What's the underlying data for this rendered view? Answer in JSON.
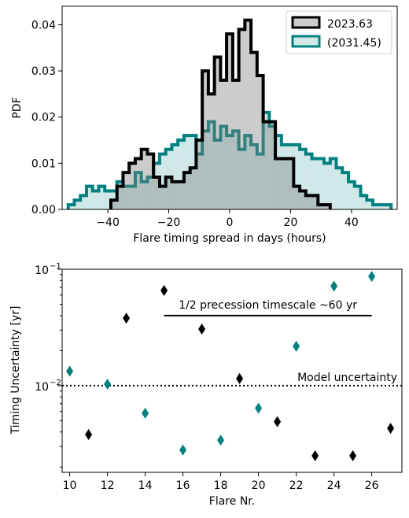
{
  "chart_data": [
    {
      "type": "histogram",
      "xlabel": "Flare timing spread in days (hours)",
      "ylabel": "PDF",
      "xlim": [
        -55,
        55
      ],
      "ylim": [
        0,
        0.044
      ],
      "xticks": [
        "−40",
        "−20",
        "0",
        "20",
        "40"
      ],
      "xtick_values": [
        -40,
        -20,
        0,
        20,
        40
      ],
      "yticks": [
        "0.00",
        "0.01",
        "0.02",
        "0.03",
        "0.04"
      ],
      "ytick_values": [
        0,
        0.01,
        0.02,
        0.03,
        0.04
      ],
      "legend_position": "top-right",
      "series": [
        {
          "name": "(2031.45)",
          "color": "#008080",
          "fill": "rgba(0,128,128,0.18)",
          "edges": [
            -53,
            -51,
            -49,
            -47,
            -45,
            -43,
            -41,
            -39,
            -37,
            -35,
            -33,
            -31,
            -29,
            -27,
            -25,
            -23,
            -21,
            -19,
            -17,
            -15,
            -13,
            -11,
            -9,
            -7,
            -5,
            -3,
            -1,
            1,
            3,
            5,
            7,
            9,
            11,
            13,
            15,
            17,
            19,
            21,
            23,
            25,
            27,
            29,
            31,
            33,
            35,
            37,
            39,
            41,
            43,
            45,
            47,
            49,
            51,
            53
          ],
          "values": [
            0.001,
            0.002,
            0.003,
            0.005,
            0.004,
            0.005,
            0.004,
            0.004,
            0.006,
            0.005,
            0.005,
            0.008,
            0.006,
            0.007,
            0.01,
            0.012,
            0.013,
            0.014,
            0.015,
            0.016,
            0.016,
            0.012,
            0.017,
            0.019,
            0.015,
            0.018,
            0.016,
            0.017,
            0.013,
            0.016,
            0.014,
            0.012,
            0.021,
            0.018,
            0.016,
            0.014,
            0.014,
            0.014,
            0.013,
            0.012,
            0.011,
            0.011,
            0.01,
            0.011,
            0.009,
            0.008,
            0.006,
            0.005,
            0.003,
            0.002,
            0.001,
            0.001,
            0.001
          ]
        },
        {
          "name": "2023.63",
          "color": "#000000",
          "fill": "rgba(128,128,128,0.40)",
          "edges": [
            -39,
            -37,
            -35,
            -33,
            -31,
            -29,
            -27,
            -25,
            -23,
            -21,
            -19,
            -17,
            -15,
            -13,
            -11,
            -9,
            -7,
            -5,
            -3,
            -1,
            1,
            3,
            5,
            7,
            9,
            11,
            13,
            15,
            17,
            19,
            21,
            23,
            25,
            27,
            29,
            31,
            33
          ],
          "values": [
            0.002,
            0.005,
            0.008,
            0.01,
            0.011,
            0.013,
            0.012,
            0.007,
            0.005,
            0.007,
            0.006,
            0.006,
            0.008,
            0.009,
            0.015,
            0.03,
            0.025,
            0.033,
            0.028,
            0.038,
            0.028,
            0.039,
            0.041,
            0.034,
            0.029,
            0.019,
            0.019,
            0.011,
            0.011,
            0.011,
            0.005,
            0.004,
            0.003,
            0.003,
            0.001,
            0.001
          ]
        }
      ]
    },
    {
      "type": "scatter",
      "xlabel": "Flare Nr.",
      "ylabel": "Timing Uncertainty [yr]",
      "xlim": [
        9.6,
        27.6
      ],
      "ylim": [
        0.0018,
        0.1
      ],
      "yscale": "log",
      "xticks": [
        "10",
        "12",
        "14",
        "16",
        "18",
        "20",
        "22",
        "24",
        "26"
      ],
      "xtick_values": [
        10,
        12,
        14,
        16,
        18,
        20,
        22,
        24,
        26
      ],
      "yticks": [
        "10",
        "10"
      ],
      "ytick_exponents": [
        "−2",
        "−1"
      ],
      "ytick_values": [
        0.01,
        0.1
      ],
      "series": [
        {
          "color": "#008080",
          "x": [
            10,
            12,
            14,
            16,
            18,
            20,
            22,
            24,
            26
          ],
          "y": [
            0.0133,
            0.0103,
            0.0058,
            0.0028,
            0.0034,
            0.0064,
            0.0218,
            0.0715,
            0.0868
          ]
        },
        {
          "color": "#000000",
          "x": [
            11,
            13,
            15,
            17,
            19,
            21,
            23,
            25,
            27
          ],
          "y": [
            0.0038,
            0.038,
            0.0657,
            0.0306,
            0.0115,
            0.0049,
            0.0025,
            0.0025,
            0.0043
          ]
        }
      ],
      "hline": {
        "y": 0.01,
        "style": "dotted",
        "label": "Model uncertainty"
      },
      "segment": {
        "x0": 15,
        "x1": 26,
        "y": 0.04,
        "label": "1/2 precession timescale  ~60 yr"
      }
    }
  ]
}
